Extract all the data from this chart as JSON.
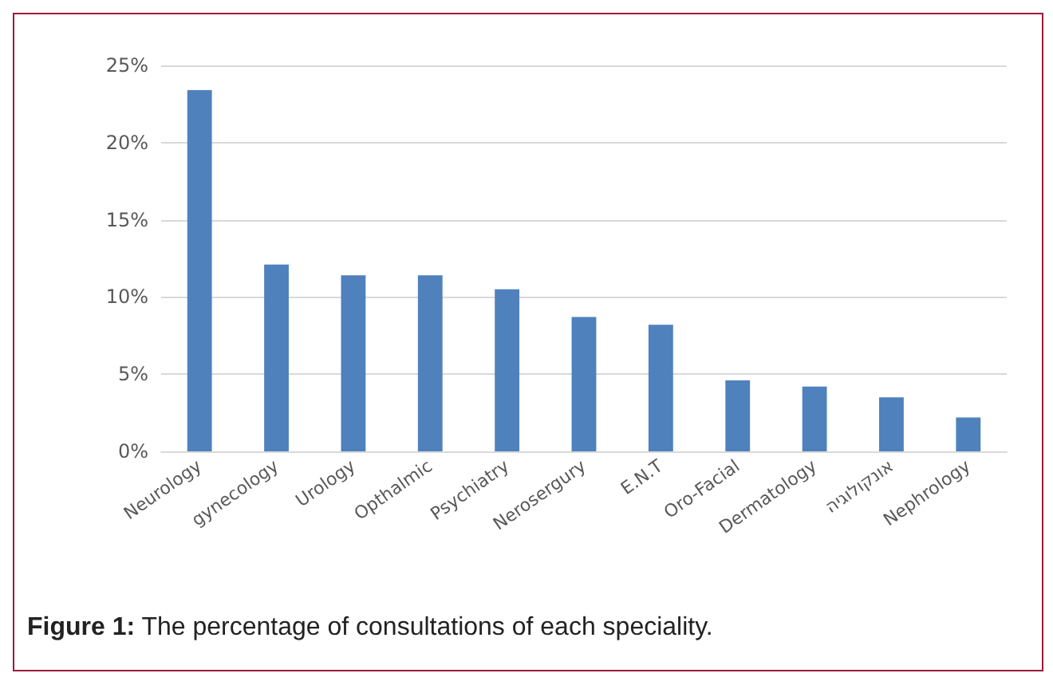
{
  "chart_data": {
    "type": "bar",
    "categories": [
      "Neurology",
      "gynecology",
      "Urology",
      "Opthalmic",
      "Psychiatry",
      "Nerosergury",
      "E.N.T",
      "Oro-Facial",
      "Dermatology",
      "אונקולוגיה",
      "Nephrology"
    ],
    "values": [
      23.4,
      12.1,
      11.4,
      11.4,
      10.5,
      8.7,
      8.2,
      4.6,
      4.2,
      3.5,
      2.2
    ],
    "color": "#4f81bd",
    "ylim": [
      0,
      25
    ],
    "yticks": [
      {
        "value": 0,
        "label": "0%"
      },
      {
        "value": 5,
        "label": "5%"
      },
      {
        "value": 10,
        "label": "10%"
      },
      {
        "value": 15,
        "label": "15%"
      },
      {
        "value": 20,
        "label": "20%"
      },
      {
        "value": 25,
        "label": "25%"
      }
    ],
    "grid": "y",
    "annotations": [
      "Figure 1: The percentage of consultations of each speciality."
    ]
  }
}
